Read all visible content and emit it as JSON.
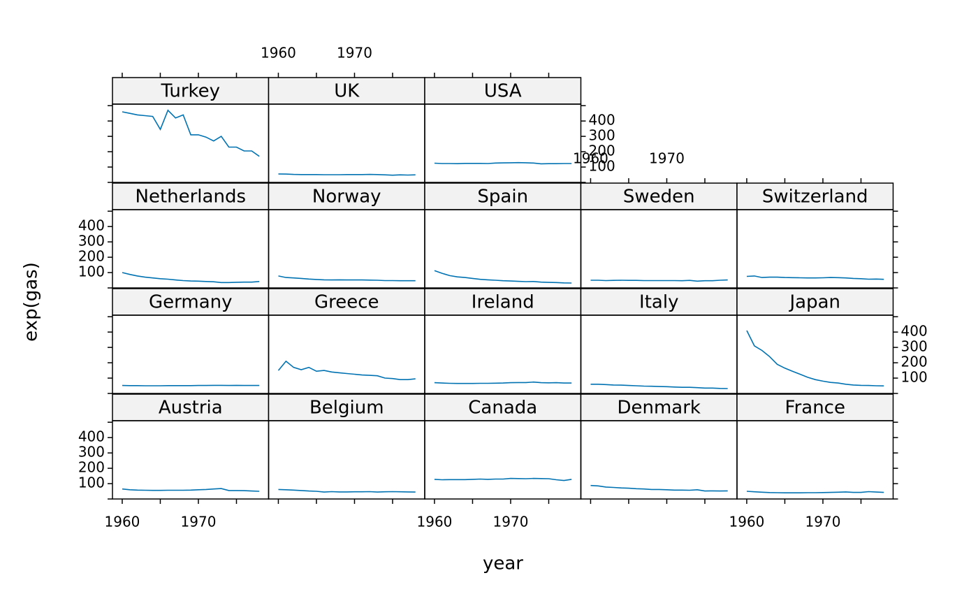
{
  "chart_data": {
    "type": "line",
    "xlabel": "year",
    "ylabel": "exp(gas)",
    "color": "#0072b2",
    "x": [
      1960,
      1961,
      1962,
      1963,
      1964,
      1965,
      1966,
      1967,
      1968,
      1969,
      1970,
      1971,
      1972,
      1973,
      1974,
      1975,
      1976,
      1977,
      1978
    ],
    "xlim": [
      1958.72,
      1979.22
    ],
    "xticks": [
      1960,
      1970
    ],
    "xminorticks": [
      1965,
      1975
    ],
    "ylim": [
      0,
      510
    ],
    "yticks": [
      100,
      200,
      300,
      400
    ],
    "yminorticks": [
      0,
      500
    ],
    "columns": 5,
    "panels": [
      {
        "name": "Austria",
        "values": [
          65,
          60,
          58,
          57,
          56,
          56,
          57,
          57,
          57,
          58,
          60,
          62,
          65,
          68,
          55,
          55,
          54,
          52,
          50
        ]
      },
      {
        "name": "Belgium",
        "values": [
          62,
          60,
          58,
          55,
          52,
          50,
          45,
          48,
          46,
          46,
          47,
          47,
          48,
          45,
          47,
          48,
          47,
          46,
          45
        ]
      },
      {
        "name": "Canada",
        "values": [
          128,
          125,
          126,
          126,
          126,
          128,
          130,
          128,
          130,
          130,
          134,
          133,
          132,
          134,
          133,
          132,
          125,
          120,
          128
        ]
      },
      {
        "name": "Denmark",
        "values": [
          88,
          85,
          78,
          75,
          72,
          70,
          67,
          65,
          62,
          62,
          60,
          58,
          58,
          57,
          60,
          52,
          53,
          52,
          53
        ]
      },
      {
        "name": "France",
        "values": [
          50,
          47,
          44,
          42,
          41,
          40,
          40,
          40,
          41,
          41,
          42,
          43,
          44,
          46,
          43,
          43,
          48,
          45,
          43
        ]
      },
      {
        "name": "Germany",
        "values": [
          52,
          51,
          51,
          50,
          50,
          50,
          51,
          51,
          51,
          51,
          52,
          52,
          53,
          53,
          52,
          53,
          52,
          52,
          52
        ]
      },
      {
        "name": "Greece",
        "values": [
          150,
          210,
          170,
          155,
          170,
          145,
          150,
          140,
          135,
          130,
          125,
          120,
          118,
          115,
          100,
          97,
          90,
          90,
          95
        ]
      },
      {
        "name": "Ireland",
        "values": [
          70,
          68,
          66,
          65,
          65,
          65,
          66,
          66,
          67,
          68,
          70,
          71,
          71,
          74,
          70,
          69,
          70,
          68,
          68
        ]
      },
      {
        "name": "Italy",
        "values": [
          60,
          60,
          58,
          55,
          54,
          52,
          50,
          48,
          47,
          45,
          44,
          42,
          40,
          40,
          38,
          35,
          35,
          33,
          32
        ]
      },
      {
        "name": "Japan",
        "values": [
          410,
          310,
          280,
          240,
          190,
          165,
          145,
          125,
          105,
          90,
          80,
          72,
          68,
          60,
          55,
          53,
          52,
          50,
          49
        ]
      },
      {
        "name": "Netherlands",
        "values": [
          100,
          88,
          78,
          70,
          65,
          60,
          57,
          52,
          48,
          45,
          44,
          42,
          40,
          35,
          35,
          37,
          38,
          38,
          42
        ]
      },
      {
        "name": "Norway",
        "values": [
          78,
          68,
          65,
          62,
          58,
          55,
          53,
          52,
          53,
          52,
          52,
          52,
          51,
          50,
          48,
          48,
          47,
          47,
          47
        ]
      },
      {
        "name": "Spain",
        "values": [
          113,
          95,
          80,
          72,
          68,
          62,
          56,
          53,
          50,
          47,
          45,
          43,
          41,
          42,
          38,
          36,
          35,
          33,
          32
        ]
      },
      {
        "name": "Sweden",
        "values": [
          50,
          50,
          48,
          49,
          50,
          49,
          49,
          48,
          48,
          48,
          48,
          48,
          47,
          49,
          44,
          47,
          47,
          50,
          52
        ]
      },
      {
        "name": "Switzerland",
        "values": [
          75,
          78,
          68,
          70,
          70,
          68,
          67,
          66,
          65,
          65,
          66,
          68,
          67,
          65,
          62,
          60,
          57,
          58,
          56
        ]
      },
      {
        "name": "Turkey",
        "values": [
          460,
          450,
          440,
          435,
          430,
          345,
          470,
          420,
          440,
          310,
          310,
          295,
          270,
          300,
          230,
          230,
          205,
          205,
          170
        ]
      },
      {
        "name": "UK",
        "values": [
          55,
          54,
          52,
          51,
          51,
          51,
          50,
          50,
          50,
          51,
          51,
          51,
          52,
          51,
          49,
          47,
          49,
          48,
          49
        ]
      },
      {
        "name": "USA",
        "values": [
          125,
          123,
          123,
          122,
          124,
          124,
          124,
          123,
          126,
          127,
          128,
          129,
          128,
          126,
          121,
          122,
          122,
          123,
          123
        ]
      }
    ]
  }
}
